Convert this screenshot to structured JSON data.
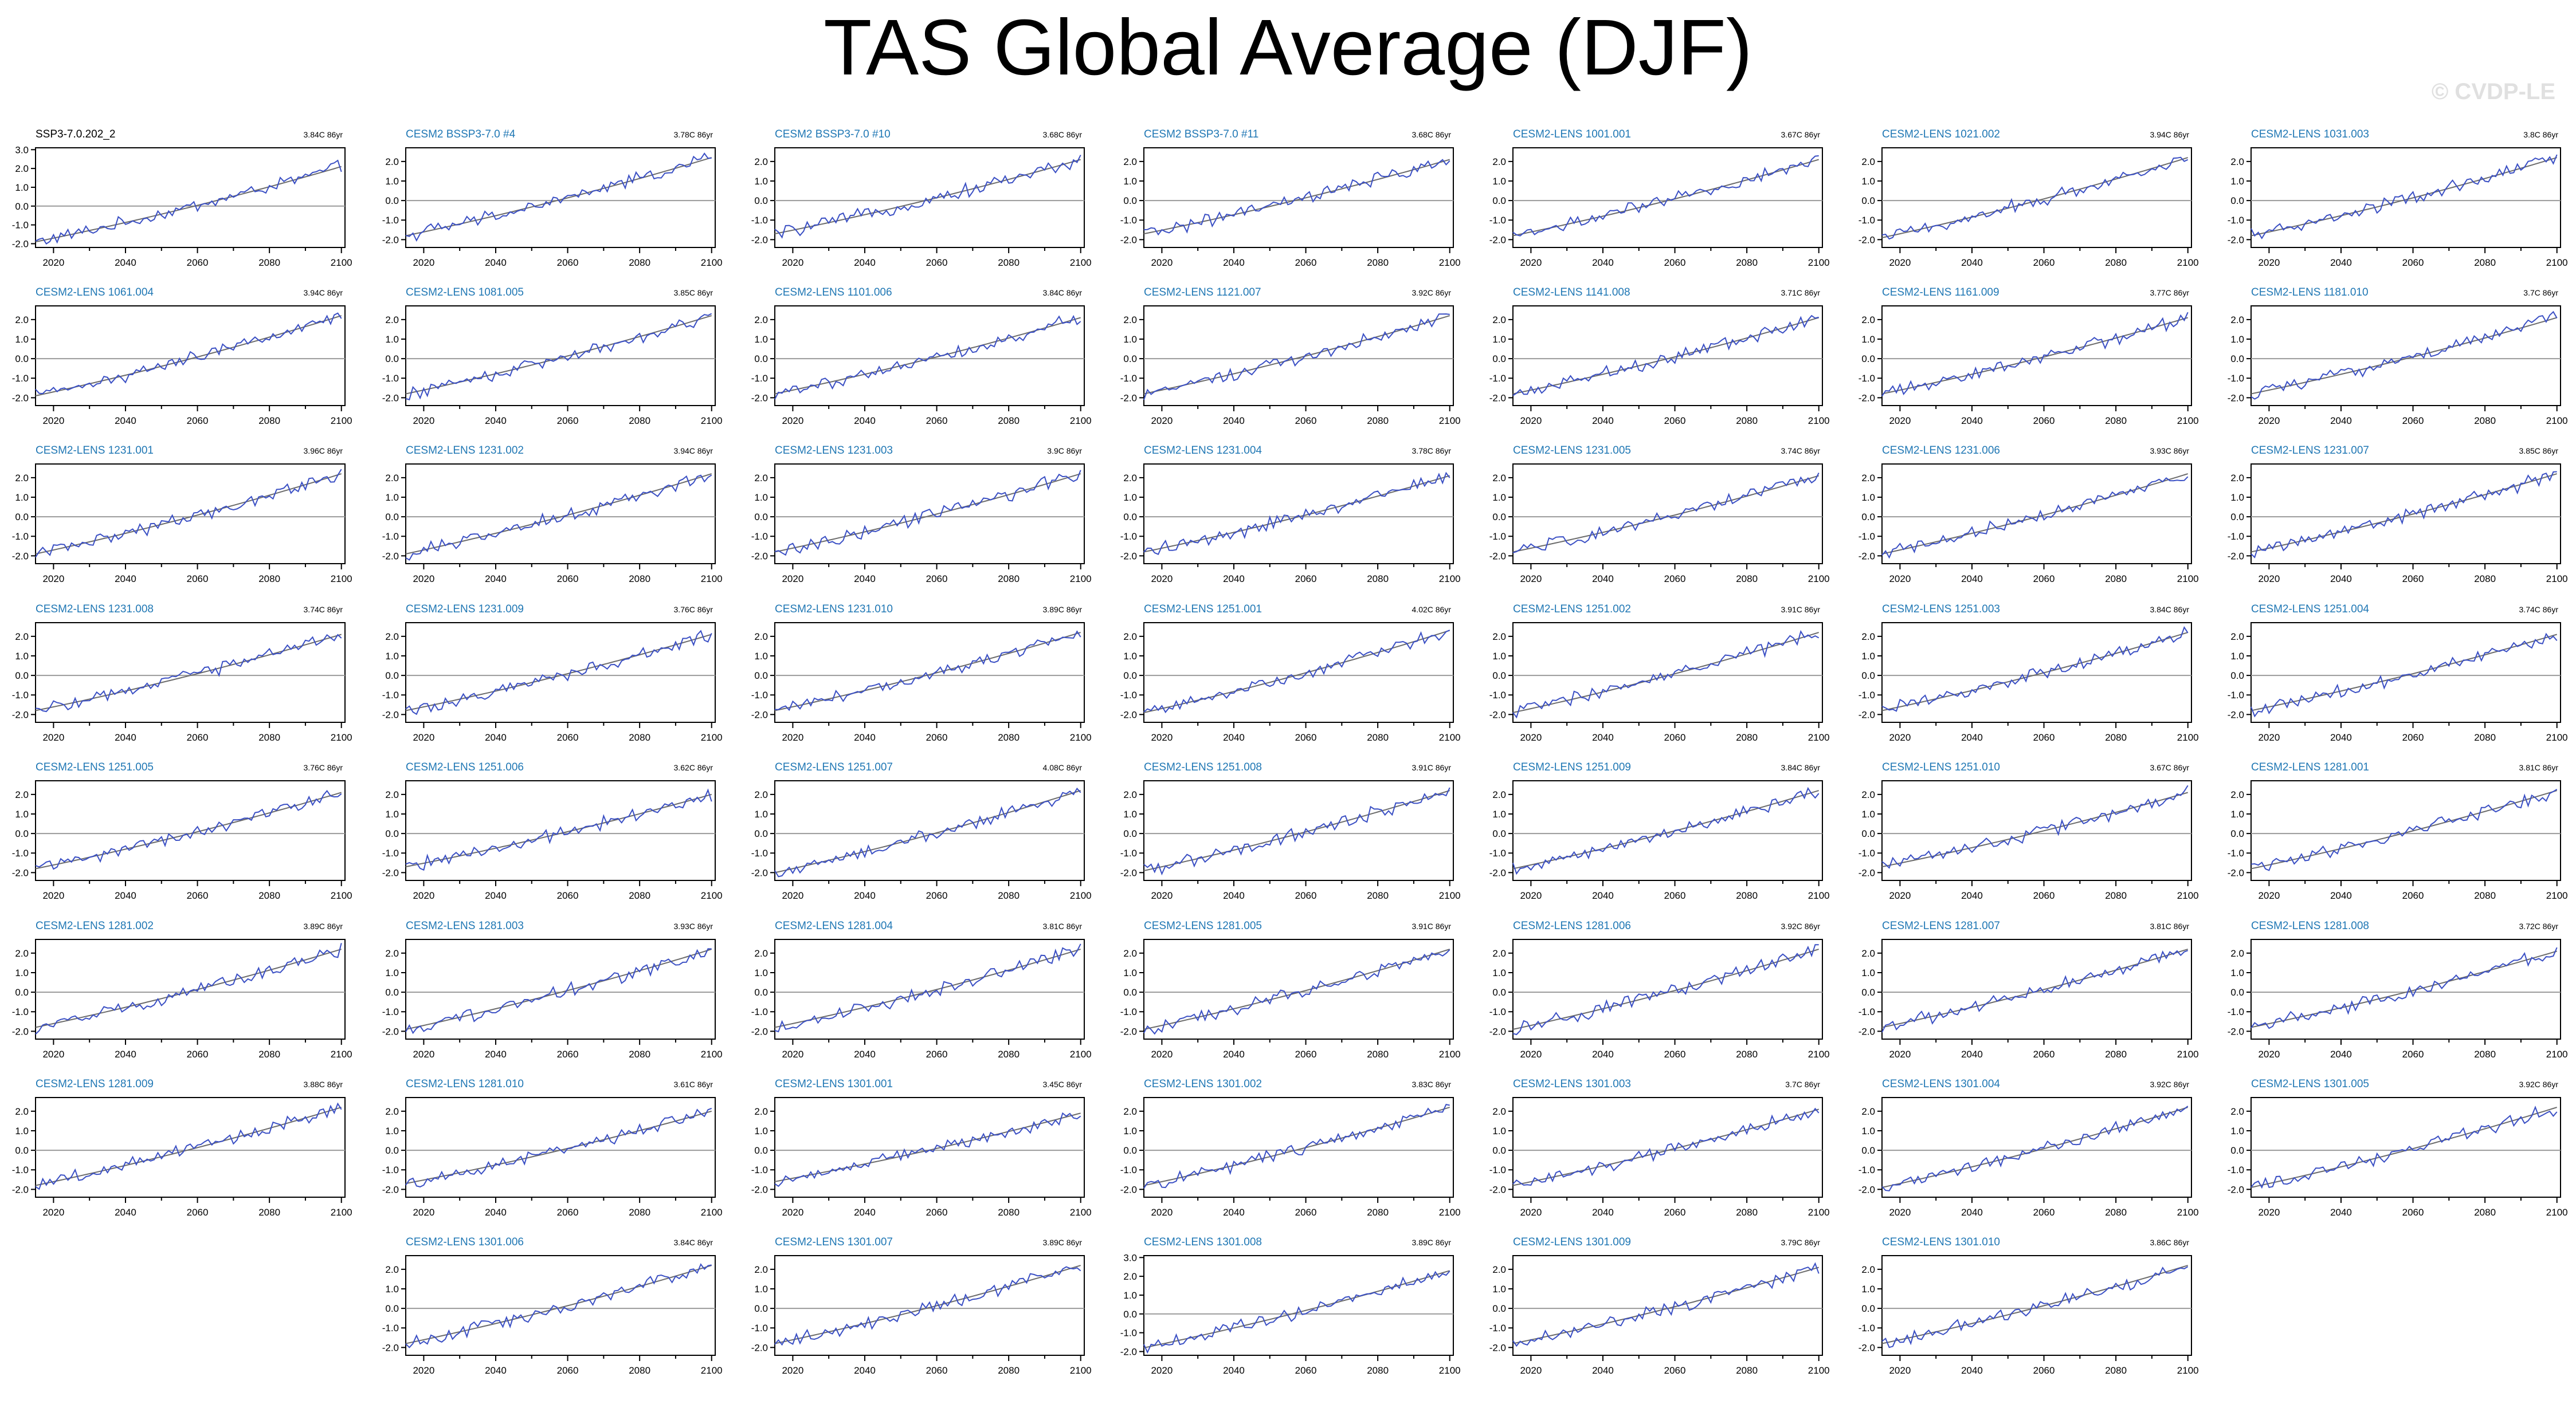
{
  "title": "TAS Global Average (DJF)",
  "copyright": "© CVDP-LE",
  "colors": {
    "observation": "#000000",
    "member_title": "#1f77b4",
    "series": "#3a4fc4",
    "trend": "#6b6b6b",
    "zero": "#9a9a9a"
  },
  "chart_data": {
    "type": "line",
    "xlim": [
      2015,
      2101
    ],
    "xticks": [
      2020,
      2040,
      2060,
      2080,
      2100
    ],
    "series_note": "",
    "panels": [
      {
        "name": "SSP3-7.0.202_2",
        "trend": "3.84C 86yr",
        "ylim": [
          -2.2,
          3.1
        ],
        "yticks": [
          "3.0",
          "2.0",
          "1.0",
          "0.0",
          "-1.0",
          "-2.0"
        ],
        "start": -1.9,
        "end": 2.1
      },
      {
        "name": "CESM2 BSSP3-7.0 #4",
        "trend": "3.78C 86yr",
        "ylim": [
          -2.4,
          2.7
        ],
        "yticks": [
          "2.0",
          "1.0",
          "0.0",
          "-1.0",
          "-2.0"
        ],
        "start": -1.8,
        "end": 2.2
      },
      {
        "name": "CESM2 BSSP3-7.0 #10",
        "trend": "3.68C 86yr",
        "ylim": [
          -2.4,
          2.7
        ],
        "yticks": [
          "2.0",
          "1.0",
          "0.0",
          "-1.0",
          "-2.0"
        ],
        "start": -1.7,
        "end": 2.1
      },
      {
        "name": "CESM2 BSSP3-7.0 #11",
        "trend": "3.68C 86yr",
        "ylim": [
          -2.4,
          2.7
        ],
        "yticks": [
          "2.0",
          "1.0",
          "0.0",
          "-1.0",
          "-2.0"
        ],
        "start": -1.7,
        "end": 2.1
      },
      {
        "name": "CESM2-LENS 1001.001",
        "trend": "3.67C 86yr",
        "ylim": [
          -2.4,
          2.7
        ],
        "yticks": [
          "2.0",
          "1.0",
          "0.0",
          "-1.0",
          "-2.0"
        ],
        "start": -1.8,
        "end": 2.1
      },
      {
        "name": "CESM2-LENS 1021.002",
        "trend": "3.94C 86yr",
        "ylim": [
          -2.4,
          2.7
        ],
        "yticks": [
          "2.0",
          "1.0",
          "0.0",
          "-1.0",
          "-2.0"
        ],
        "start": -1.9,
        "end": 2.2
      },
      {
        "name": "CESM2-LENS 1031.003",
        "trend": "3.8C 86yr",
        "ylim": [
          -2.4,
          2.7
        ],
        "yticks": [
          "2.0",
          "1.0",
          "0.0",
          "-1.0",
          "-2.0"
        ],
        "start": -1.8,
        "end": 2.2
      },
      {
        "name": "CESM2-LENS 1061.004",
        "trend": "3.94C 86yr",
        "ylim": [
          -2.4,
          2.7
        ],
        "yticks": [
          "2.0",
          "1.0",
          "0.0",
          "-1.0",
          "-2.0"
        ],
        "start": -1.9,
        "end": 2.2
      },
      {
        "name": "CESM2-LENS 1081.005",
        "trend": "3.85C 86yr",
        "ylim": [
          -2.4,
          2.7
        ],
        "yticks": [
          "2.0",
          "1.0",
          "0.0",
          "-1.0",
          "-2.0"
        ],
        "start": -1.8,
        "end": 2.2
      },
      {
        "name": "CESM2-LENS 1101.006",
        "trend": "3.84C 86yr",
        "ylim": [
          -2.4,
          2.7
        ],
        "yticks": [
          "2.0",
          "1.0",
          "0.0",
          "-1.0",
          "-2.0"
        ],
        "start": -1.8,
        "end": 2.1
      },
      {
        "name": "CESM2-LENS 1121.007",
        "trend": "3.92C 86yr",
        "ylim": [
          -2.4,
          2.7
        ],
        "yticks": [
          "2.0",
          "1.0",
          "0.0",
          "-1.0",
          "-2.0"
        ],
        "start": -1.8,
        "end": 2.2
      },
      {
        "name": "CESM2-LENS 1141.008",
        "trend": "3.71C 86yr",
        "ylim": [
          -2.4,
          2.7
        ],
        "yticks": [
          "2.0",
          "1.0",
          "0.0",
          "-1.0",
          "-2.0"
        ],
        "start": -1.8,
        "end": 2.1
      },
      {
        "name": "CESM2-LENS 1161.009",
        "trend": "3.77C 86yr",
        "ylim": [
          -2.4,
          2.7
        ],
        "yticks": [
          "2.0",
          "1.0",
          "0.0",
          "-1.0",
          "-2.0"
        ],
        "start": -1.8,
        "end": 2.1
      },
      {
        "name": "CESM2-LENS 1181.010",
        "trend": "3.7C 86yr",
        "ylim": [
          -2.4,
          2.7
        ],
        "yticks": [
          "2.0",
          "1.0",
          "0.0",
          "-1.0",
          "-2.0"
        ],
        "start": -1.8,
        "end": 2.1
      },
      {
        "name": "CESM2-LENS 1231.001",
        "trend": "3.96C 86yr",
        "ylim": [
          -2.4,
          2.7
        ],
        "yticks": [
          "2.0",
          "1.0",
          "0.0",
          "-1.0",
          "-2.0"
        ],
        "start": -1.9,
        "end": 2.2
      },
      {
        "name": "CESM2-LENS 1231.002",
        "trend": "3.94C 86yr",
        "ylim": [
          -2.4,
          2.7
        ],
        "yticks": [
          "2.0",
          "1.0",
          "0.0",
          "-1.0",
          "-2.0"
        ],
        "start": -1.9,
        "end": 2.2
      },
      {
        "name": "CESM2-LENS 1231.003",
        "trend": "3.9C 86yr",
        "ylim": [
          -2.4,
          2.7
        ],
        "yticks": [
          "2.0",
          "1.0",
          "0.0",
          "-1.0",
          "-2.0"
        ],
        "start": -1.8,
        "end": 2.2
      },
      {
        "name": "CESM2-LENS 1231.004",
        "trend": "3.78C 86yr",
        "ylim": [
          -2.4,
          2.7
        ],
        "yticks": [
          "2.0",
          "1.0",
          "0.0",
          "-1.0",
          "-2.0"
        ],
        "start": -1.8,
        "end": 2.1
      },
      {
        "name": "CESM2-LENS 1231.005",
        "trend": "3.74C 86yr",
        "ylim": [
          -2.4,
          2.7
        ],
        "yticks": [
          "2.0",
          "1.0",
          "0.0",
          "-1.0",
          "-2.0"
        ],
        "start": -1.8,
        "end": 2.1
      },
      {
        "name": "CESM2-LENS 1231.006",
        "trend": "3.93C 86yr",
        "ylim": [
          -2.4,
          2.7
        ],
        "yticks": [
          "2.0",
          "1.0",
          "0.0",
          "-1.0",
          "-2.0"
        ],
        "start": -1.9,
        "end": 2.2
      },
      {
        "name": "CESM2-LENS 1231.007",
        "trend": "3.85C 86yr",
        "ylim": [
          -2.4,
          2.7
        ],
        "yticks": [
          "2.0",
          "1.0",
          "0.0",
          "-1.0",
          "-2.0"
        ],
        "start": -1.8,
        "end": 2.2
      },
      {
        "name": "CESM2-LENS 1231.008",
        "trend": "3.74C 86yr",
        "ylim": [
          -2.4,
          2.7
        ],
        "yticks": [
          "2.0",
          "1.0",
          "0.0",
          "-1.0",
          "-2.0"
        ],
        "start": -1.8,
        "end": 2.1
      },
      {
        "name": "CESM2-LENS 1231.009",
        "trend": "3.76C 86yr",
        "ylim": [
          -2.4,
          2.7
        ],
        "yticks": [
          "2.0",
          "1.0",
          "0.0",
          "-1.0",
          "-2.0"
        ],
        "start": -1.8,
        "end": 2.1
      },
      {
        "name": "CESM2-LENS 1231.010",
        "trend": "3.89C 86yr",
        "ylim": [
          -2.4,
          2.7
        ],
        "yticks": [
          "2.0",
          "1.0",
          "0.0",
          "-1.0",
          "-2.0"
        ],
        "start": -1.8,
        "end": 2.2
      },
      {
        "name": "CESM2-LENS 1251.001",
        "trend": "4.02C 86yr",
        "ylim": [
          -2.4,
          2.7
        ],
        "yticks": [
          "2.0",
          "1.0",
          "0.0",
          "-1.0",
          "-2.0"
        ],
        "start": -1.9,
        "end": 2.3
      },
      {
        "name": "CESM2-LENS 1251.002",
        "trend": "3.91C 86yr",
        "ylim": [
          -2.4,
          2.7
        ],
        "yticks": [
          "2.0",
          "1.0",
          "0.0",
          "-1.0",
          "-2.0"
        ],
        "start": -1.9,
        "end": 2.2
      },
      {
        "name": "CESM2-LENS 1251.003",
        "trend": "3.84C 86yr",
        "ylim": [
          -2.4,
          2.7
        ],
        "yticks": [
          "2.0",
          "1.0",
          "0.0",
          "-1.0",
          "-2.0"
        ],
        "start": -1.8,
        "end": 2.2
      },
      {
        "name": "CESM2-LENS 1251.004",
        "trend": "3.74C 86yr",
        "ylim": [
          -2.4,
          2.7
        ],
        "yticks": [
          "2.0",
          "1.0",
          "0.0",
          "-1.0",
          "-2.0"
        ],
        "start": -1.8,
        "end": 2.1
      },
      {
        "name": "CESM2-LENS 1251.005",
        "trend": "3.76C 86yr",
        "ylim": [
          -2.4,
          2.7
        ],
        "yticks": [
          "2.0",
          "1.0",
          "0.0",
          "-1.0",
          "-2.0"
        ],
        "start": -1.8,
        "end": 2.1
      },
      {
        "name": "CESM2-LENS 1251.006",
        "trend": "3.62C 86yr",
        "ylim": [
          -2.4,
          2.7
        ],
        "yticks": [
          "2.0",
          "1.0",
          "0.0",
          "-1.0",
          "-2.0"
        ],
        "start": -1.7,
        "end": 2.0
      },
      {
        "name": "CESM2-LENS 1251.007",
        "trend": "4.08C 86yr",
        "ylim": [
          -2.4,
          2.7
        ],
        "yticks": [
          "2.0",
          "1.0",
          "0.0",
          "-1.0",
          "-2.0"
        ],
        "start": -2.0,
        "end": 2.2
      },
      {
        "name": "CESM2-LENS 1251.008",
        "trend": "3.91C 86yr",
        "ylim": [
          -2.4,
          2.7
        ],
        "yticks": [
          "2.0",
          "1.0",
          "0.0",
          "-1.0",
          "-2.0"
        ],
        "start": -1.9,
        "end": 2.2
      },
      {
        "name": "CESM2-LENS 1251.009",
        "trend": "3.84C 86yr",
        "ylim": [
          -2.4,
          2.7
        ],
        "yticks": [
          "2.0",
          "1.0",
          "0.0",
          "-1.0",
          "-2.0"
        ],
        "start": -1.8,
        "end": 2.2
      },
      {
        "name": "CESM2-LENS 1251.010",
        "trend": "3.67C 86yr",
        "ylim": [
          -2.4,
          2.7
        ],
        "yticks": [
          "2.0",
          "1.0",
          "0.0",
          "-1.0",
          "-2.0"
        ],
        "start": -1.7,
        "end": 2.1
      },
      {
        "name": "CESM2-LENS 1281.001",
        "trend": "3.81C 86yr",
        "ylim": [
          -2.4,
          2.7
        ],
        "yticks": [
          "2.0",
          "1.0",
          "0.0",
          "-1.0",
          "-2.0"
        ],
        "start": -1.8,
        "end": 2.2
      },
      {
        "name": "CESM2-LENS 1281.002",
        "trend": "3.89C 86yr",
        "ylim": [
          -2.4,
          2.7
        ],
        "yticks": [
          "2.0",
          "1.0",
          "0.0",
          "-1.0",
          "-2.0"
        ],
        "start": -1.8,
        "end": 2.2
      },
      {
        "name": "CESM2-LENS 1281.003",
        "trend": "3.93C 86yr",
        "ylim": [
          -2.4,
          2.7
        ],
        "yticks": [
          "2.0",
          "1.0",
          "0.0",
          "-1.0",
          "-2.0"
        ],
        "start": -1.9,
        "end": 2.2
      },
      {
        "name": "CESM2-LENS 1281.004",
        "trend": "3.81C 86yr",
        "ylim": [
          -2.4,
          2.7
        ],
        "yticks": [
          "2.0",
          "1.0",
          "0.0",
          "-1.0",
          "-2.0"
        ],
        "start": -1.8,
        "end": 2.2
      },
      {
        "name": "CESM2-LENS 1281.005",
        "trend": "3.91C 86yr",
        "ylim": [
          -2.4,
          2.7
        ],
        "yticks": [
          "2.0",
          "1.0",
          "0.0",
          "-1.0",
          "-2.0"
        ],
        "start": -1.9,
        "end": 2.2
      },
      {
        "name": "CESM2-LENS 1281.006",
        "trend": "3.92C 86yr",
        "ylim": [
          -2.4,
          2.7
        ],
        "yticks": [
          "2.0",
          "1.0",
          "0.0",
          "-1.0",
          "-2.0"
        ],
        "start": -1.9,
        "end": 2.2
      },
      {
        "name": "CESM2-LENS 1281.007",
        "trend": "3.81C 86yr",
        "ylim": [
          -2.4,
          2.7
        ],
        "yticks": [
          "2.0",
          "1.0",
          "0.0",
          "-1.0",
          "-2.0"
        ],
        "start": -1.8,
        "end": 2.2
      },
      {
        "name": "CESM2-LENS 1281.008",
        "trend": "3.72C 86yr",
        "ylim": [
          -2.4,
          2.7
        ],
        "yticks": [
          "2.0",
          "1.0",
          "0.0",
          "-1.0",
          "-2.0"
        ],
        "start": -1.8,
        "end": 2.1
      },
      {
        "name": "CESM2-LENS 1281.009",
        "trend": "3.88C 86yr",
        "ylim": [
          -2.4,
          2.7
        ],
        "yticks": [
          "2.0",
          "1.0",
          "0.0",
          "-1.0",
          "-2.0"
        ],
        "start": -1.8,
        "end": 2.2
      },
      {
        "name": "CESM2-LENS 1281.010",
        "trend": "3.61C 86yr",
        "ylim": [
          -2.4,
          2.7
        ],
        "yticks": [
          "2.0",
          "1.0",
          "0.0",
          "-1.0",
          "-2.0"
        ],
        "start": -1.7,
        "end": 2.0
      },
      {
        "name": "CESM2-LENS 1301.001",
        "trend": "3.45C 86yr",
        "ylim": [
          -2.4,
          2.7
        ],
        "yticks": [
          "2.0",
          "1.0",
          "0.0",
          "-1.0",
          "-2.0"
        ],
        "start": -1.6,
        "end": 1.9
      },
      {
        "name": "CESM2-LENS 1301.002",
        "trend": "3.83C 86yr",
        "ylim": [
          -2.4,
          2.7
        ],
        "yticks": [
          "2.0",
          "1.0",
          "0.0",
          "-1.0",
          "-2.0"
        ],
        "start": -1.8,
        "end": 2.2
      },
      {
        "name": "CESM2-LENS 1301.003",
        "trend": "3.7C 86yr",
        "ylim": [
          -2.4,
          2.7
        ],
        "yticks": [
          "2.0",
          "1.0",
          "0.0",
          "-1.0",
          "-2.0"
        ],
        "start": -1.8,
        "end": 2.1
      },
      {
        "name": "CESM2-LENS 1301.004",
        "trend": "3.92C 86yr",
        "ylim": [
          -2.4,
          2.7
        ],
        "yticks": [
          "2.0",
          "1.0",
          "0.0",
          "-1.0",
          "-2.0"
        ],
        "start": -1.9,
        "end": 2.2
      },
      {
        "name": "CESM2-LENS 1301.005",
        "trend": "3.92C 86yr",
        "ylim": [
          -2.4,
          2.7
        ],
        "yticks": [
          "2.0",
          "1.0",
          "0.0",
          "-1.0",
          "-2.0"
        ],
        "start": -1.9,
        "end": 2.2
      },
      {
        "name": "CESM2-LENS 1301.006",
        "trend": "3.84C 86yr",
        "ylim": [
          -2.4,
          2.7
        ],
        "yticks": [
          "2.0",
          "1.0",
          "0.0",
          "-1.0",
          "-2.0"
        ],
        "start": -1.8,
        "end": 2.2
      },
      {
        "name": "CESM2-LENS 1301.007",
        "trend": "3.89C 86yr",
        "ylim": [
          -2.4,
          2.7
        ],
        "yticks": [
          "2.0",
          "1.0",
          "0.0",
          "-1.0",
          "-2.0"
        ],
        "start": -1.8,
        "end": 2.2
      },
      {
        "name": "CESM2-LENS 1301.008",
        "trend": "3.89C 86yr",
        "ylim": [
          -2.2,
          3.1
        ],
        "yticks": [
          "3.0",
          "2.0",
          "1.0",
          "0.0",
          "-1.0",
          "-2.0"
        ],
        "start": -1.8,
        "end": 2.3
      },
      {
        "name": "CESM2-LENS 1301.009",
        "trend": "3.79C 86yr",
        "ylim": [
          -2.4,
          2.7
        ],
        "yticks": [
          "2.0",
          "1.0",
          "0.0",
          "-1.0",
          "-2.0"
        ],
        "start": -1.8,
        "end": 2.1
      },
      {
        "name": "CESM2-LENS 1301.010",
        "trend": "3.86C 86yr",
        "ylim": [
          -2.4,
          2.7
        ],
        "yticks": [
          "2.0",
          "1.0",
          "0.0",
          "-1.0",
          "-2.0"
        ],
        "start": -1.8,
        "end": 2.2
      }
    ]
  }
}
